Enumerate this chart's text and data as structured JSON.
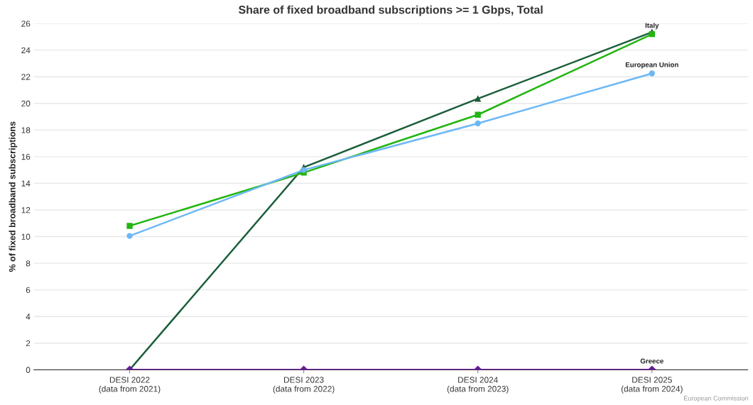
{
  "chart_data": {
    "type": "line",
    "title": "Share of fixed broadband subscriptions >= 1 Gbps, Total",
    "ylabel": "% of fixed broadband subscriptions",
    "categories": [
      "DESI 2022\n(data from 2021)",
      "DESI 2023\n(data from 2022)",
      "DESI 2024\n(data from 2023)",
      "DESI 2025\n(data from 2024)"
    ],
    "series": [
      {
        "color": "#1b5e3b",
        "marker": "triangle",
        "values": [
          0,
          15.2,
          20.35,
          25.35
        ]
      },
      {
        "name": "Italy",
        "color": "#22b511",
        "marker": "square",
        "values": [
          10.8,
          14.8,
          19.15,
          25.2
        ]
      },
      {
        "name": "European Union",
        "color": "#6cb8f6",
        "marker": "circle",
        "values": [
          10.05,
          15.0,
          18.5,
          22.25
        ]
      },
      {
        "name": "Greece",
        "color": "#6a1b9a",
        "marker": "diamond",
        "values": [
          0,
          0,
          0,
          0
        ]
      }
    ],
    "ylim": [
      0,
      26
    ],
    "yticks": [
      0,
      2,
      4,
      6,
      8,
      10,
      12,
      14,
      16,
      18,
      20,
      22,
      24,
      26
    ],
    "grid": "y",
    "legend": false,
    "annotations": [
      "European Commission"
    ]
  }
}
